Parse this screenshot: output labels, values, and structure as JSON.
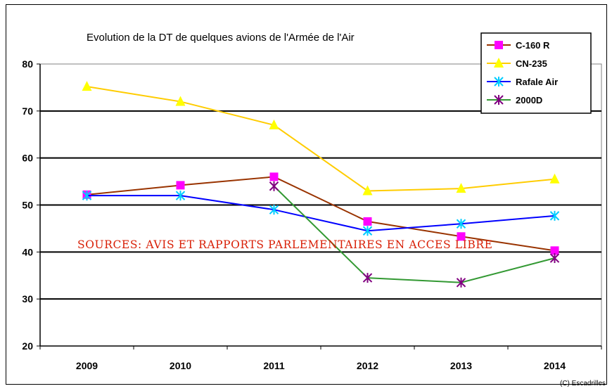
{
  "chart_data": {
    "type": "line",
    "title": "Evolution de la DT de quelques avions de l'Armée de l'Air",
    "categories": [
      "2009",
      "2010",
      "2011",
      "2012",
      "2013",
      "2014"
    ],
    "y_ticks": [
      "20",
      "30",
      "40",
      "50",
      "60",
      "70",
      "80"
    ],
    "ylim": [
      20,
      80
    ],
    "grid": "horizontal",
    "legend_position": "top-right",
    "series": [
      {
        "name": "C-160 R",
        "color": "#993300",
        "marker": "square",
        "marker_color": "#ff00ff",
        "values": [
          52.2,
          54.2,
          56.0,
          46.5,
          43.3,
          40.3
        ]
      },
      {
        "name": "CN-235",
        "color": "#ffcc00",
        "marker": "triangle",
        "marker_color": "#ffff00",
        "values": [
          75.2,
          72.0,
          67.0,
          53.0,
          53.5,
          55.5
        ]
      },
      {
        "name": "Rafale Air",
        "color": "#0000ff",
        "marker": "asterisk",
        "marker_color": "#00ccff",
        "values": [
          52.0,
          52.0,
          49.0,
          44.5,
          46.0,
          47.7
        ]
      },
      {
        "name": "2000D",
        "color": "#339933",
        "marker": "asterisk",
        "marker_color": "#800080",
        "values": [
          null,
          null,
          54.0,
          34.5,
          33.5,
          38.7
        ]
      }
    ],
    "annotation": "SOURCES: AVIS ET RAPPORTS PARLEMENTAIRES EN ACCES LIBRE"
  },
  "credit": "(C) Escadrilles"
}
